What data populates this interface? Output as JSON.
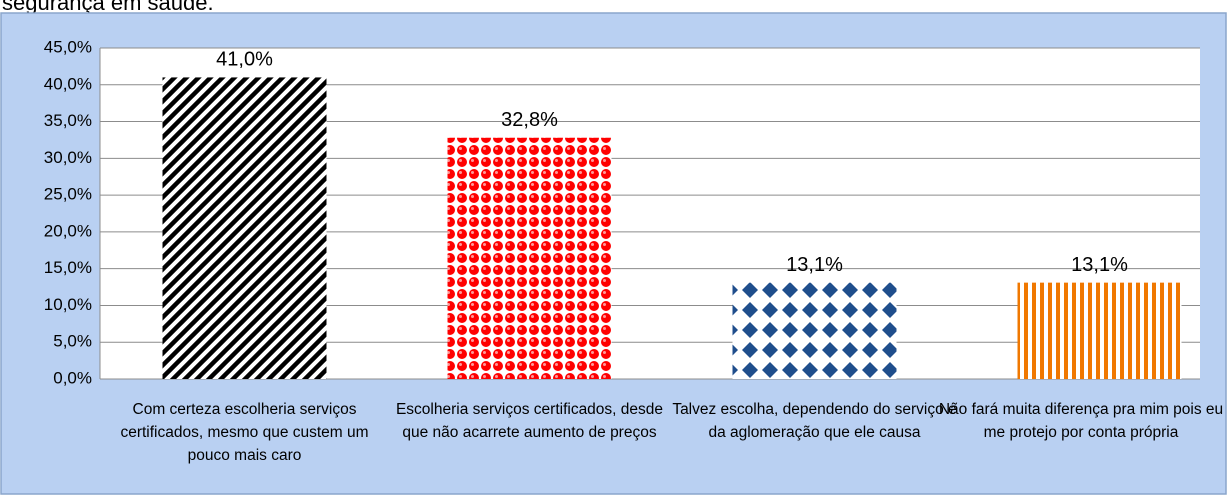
{
  "chart_data": {
    "type": "bar",
    "caption": "segurança em saúde.",
    "categories": [
      "Com certeza escolheria serviços certificados, mesmo que custem um pouco mais caro",
      "Escolheria serviços certificados, desde que não acarrete aumento de preços",
      "Talvez escolha, dependendo do serviço e da aglomeração que ele causa",
      "Não fará muita diferença pra mim pois eu me protejo por conta própria"
    ],
    "values": [
      41.0,
      32.8,
      13.1,
      13.1
    ],
    "value_labels": [
      "41,0%",
      "32,8%",
      "13,1%",
      "13,1%"
    ],
    "colors": [
      "#000000",
      "#ff0000",
      "#1f4e8c",
      "#f07800"
    ],
    "ylim": [
      0,
      45
    ],
    "yticks": [
      {
        "value": 0,
        "label": "0,0%"
      },
      {
        "value": 5,
        "label": "5,0%"
      },
      {
        "value": 10,
        "label": "10,0%"
      },
      {
        "value": 15,
        "label": "15,0%"
      },
      {
        "value": 20,
        "label": "20,0%"
      },
      {
        "value": 25,
        "label": "25,0%"
      },
      {
        "value": 30,
        "label": "30,0%"
      },
      {
        "value": 35,
        "label": "35,0%"
      },
      {
        "value": 40,
        "label": "40,0%"
      },
      {
        "value": 45,
        "label": "45,0%"
      }
    ],
    "grid": true
  }
}
